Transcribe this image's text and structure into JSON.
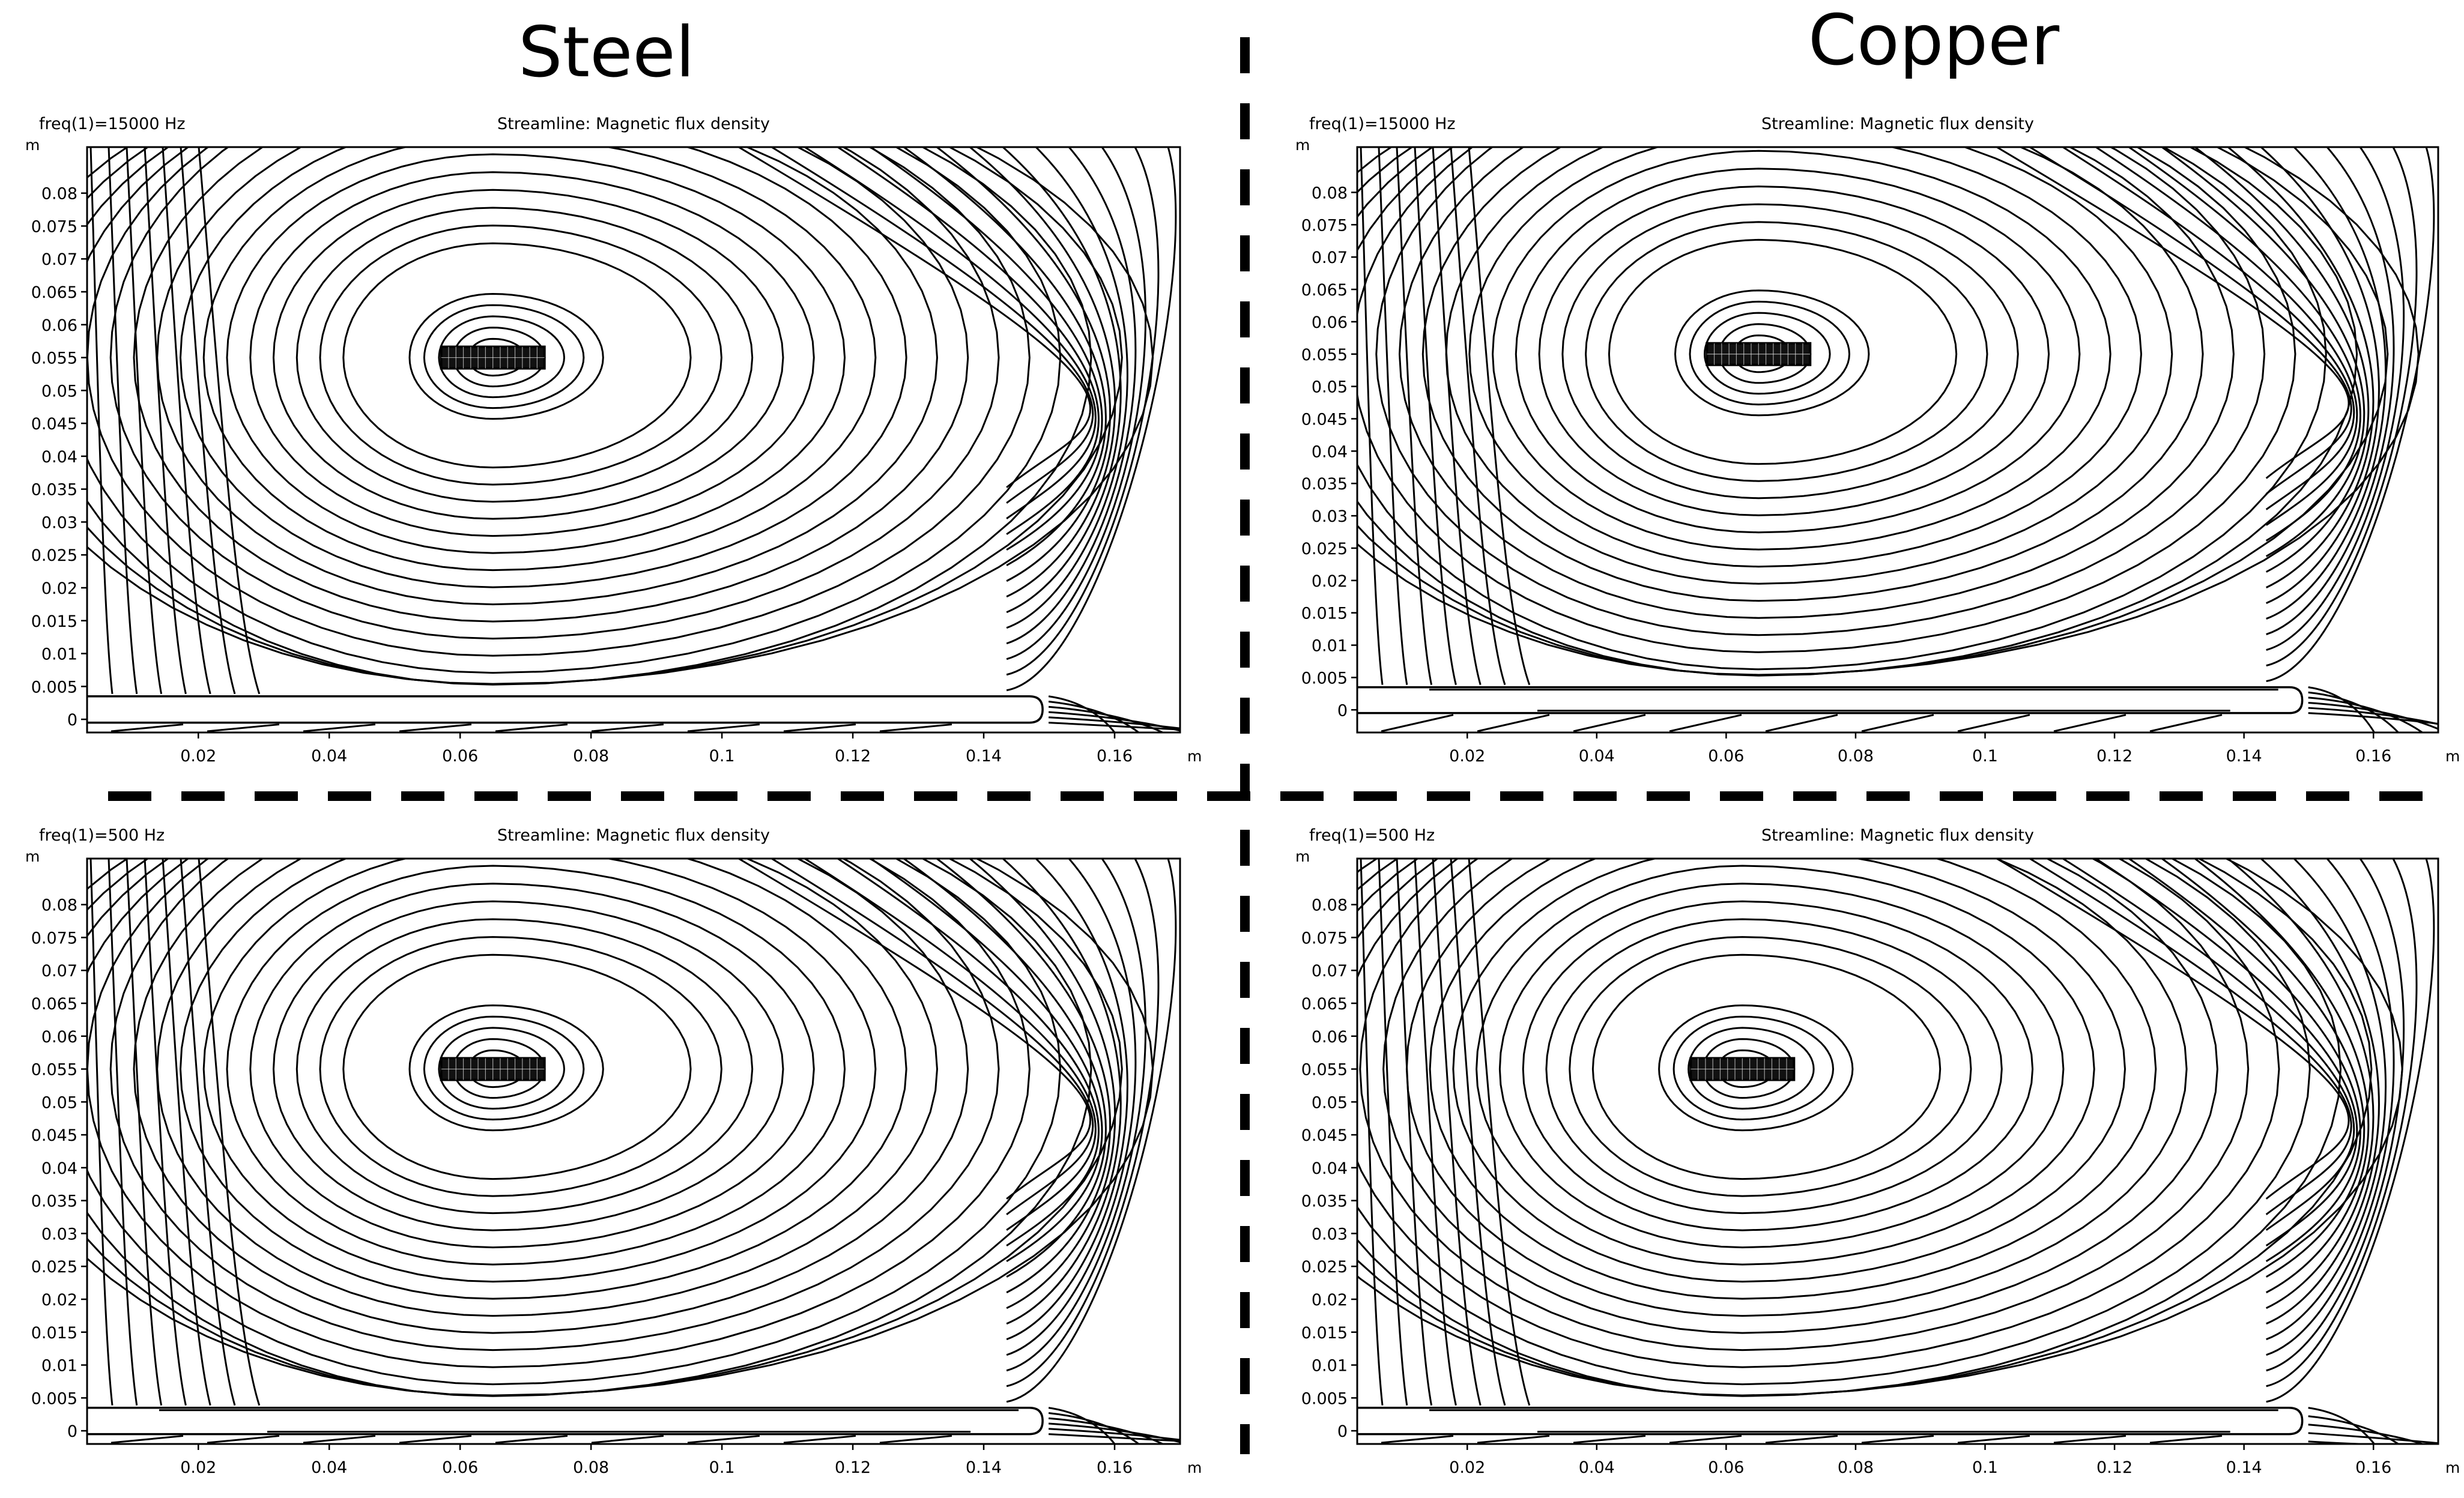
{
  "columns": {
    "left_title": "Steel",
    "right_title": "Copper"
  },
  "chart_data": [
    {
      "type": "streamline",
      "material": "Steel",
      "frequency_label": "freq(1)=15000 Hz",
      "title": "Streamline: Magnetic flux density",
      "y_unit": "m",
      "x_unit": "m",
      "xlim": [
        0.003,
        0.17
      ],
      "ylim": [
        -0.002,
        0.087
      ],
      "x_ticks": [
        "0.02",
        "0.04",
        "0.06",
        "0.08",
        "0.1",
        "0.12",
        "0.14",
        "0.16"
      ],
      "y_ticks": [
        "0",
        "0.005",
        "0.01",
        "0.015",
        "0.02",
        "0.025",
        "0.03",
        "0.035",
        "0.04",
        "0.045",
        "0.05",
        "0.055",
        "0.06",
        "0.065",
        "0.07",
        "0.075",
        "0.08"
      ],
      "coil_center": [
        0.065,
        0.055
      ],
      "plate": {
        "x_end": 0.149,
        "y_bottom": -0.0005,
        "y_top": 0.0035
      }
    },
    {
      "type": "streamline",
      "material": "Copper",
      "frequency_label": "freq(1)=15000 Hz",
      "title": "Streamline: Magnetic flux density",
      "y_unit": "m",
      "x_unit": "m",
      "xlim": [
        0.003,
        0.17
      ],
      "ylim": [
        -0.0035,
        0.087
      ],
      "x_ticks": [
        "0.02",
        "0.04",
        "0.06",
        "0.08",
        "0.1",
        "0.12",
        "0.14",
        "0.16"
      ],
      "y_ticks": [
        "0",
        "0.005",
        "0.01",
        "0.015",
        "0.02",
        "0.025",
        "0.03",
        "0.035",
        "0.04",
        "0.045",
        "0.05",
        "0.055",
        "0.06",
        "0.065",
        "0.07",
        "0.075",
        "0.08"
      ],
      "coil_center": [
        0.065,
        0.055
      ],
      "plate": {
        "x_end": 0.149,
        "y_bottom": -0.0005,
        "y_top": 0.0035
      }
    },
    {
      "type": "streamline",
      "material": "Steel",
      "frequency_label": "freq(1)=500 Hz",
      "title": "Streamline: Magnetic flux density",
      "y_unit": "m",
      "x_unit": "m",
      "xlim": [
        0.003,
        0.17
      ],
      "ylim": [
        -0.002,
        0.087
      ],
      "x_ticks": [
        "0.02",
        "0.04",
        "0.06",
        "0.08",
        "0.1",
        "0.12",
        "0.14",
        "0.16"
      ],
      "y_ticks": [
        "0",
        "0.005",
        "0.01",
        "0.015",
        "0.02",
        "0.025",
        "0.03",
        "0.035",
        "0.04",
        "0.045",
        "0.05",
        "0.055",
        "0.06",
        "0.065",
        "0.07",
        "0.075",
        "0.08"
      ],
      "coil_center": [
        0.065,
        0.055
      ],
      "plate": {
        "x_end": 0.149,
        "y_bottom": -0.0005,
        "y_top": 0.0035
      }
    },
    {
      "type": "streamline",
      "material": "Copper",
      "frequency_label": "freq(1)=500 Hz",
      "title": "Streamline: Magnetic flux density",
      "y_unit": "m",
      "x_unit": "m",
      "xlim": [
        0.003,
        0.17
      ],
      "ylim": [
        -0.002,
        0.087
      ],
      "x_ticks": [
        "0.02",
        "0.04",
        "0.06",
        "0.08",
        "0.1",
        "0.12",
        "0.14",
        "0.16"
      ],
      "y_ticks": [
        "0",
        "0.005",
        "0.01",
        "0.015",
        "0.02",
        "0.025",
        "0.03",
        "0.035",
        "0.04",
        "0.045",
        "0.05",
        "0.055",
        "0.06",
        "0.065",
        "0.07",
        "0.075",
        "0.08"
      ],
      "coil_center": [
        0.0625,
        0.055
      ],
      "plate": {
        "x_end": 0.149,
        "y_bottom": -0.0005,
        "y_top": 0.0035
      }
    }
  ]
}
